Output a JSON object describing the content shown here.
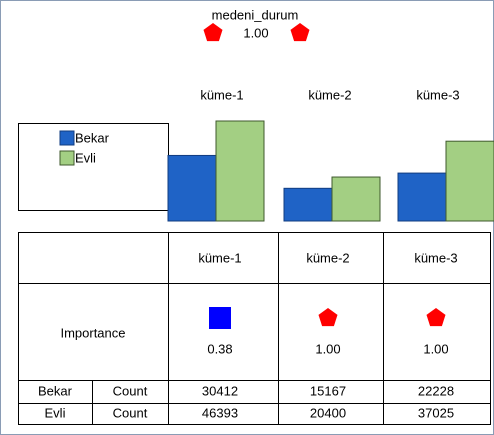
{
  "header": {
    "variable": "medeni_durum",
    "importance": "1.00",
    "shape": "pentagon"
  },
  "clusters": [
    "küme-1",
    "küme-2",
    "küme-3"
  ],
  "colors": [
    "#1f63c6",
    "#a3cf83"
  ],
  "table": {
    "importance_label": "Importance",
    "importance": [
      "0.38",
      "1.00",
      "1.00"
    ],
    "importance_shape": [
      "square",
      "pentagon",
      "pentagon"
    ],
    "count_label": "Count",
    "rows": [
      {
        "name": "Bekar",
        "counts": [
          30412,
          15167,
          22228
        ]
      },
      {
        "name": "Evli",
        "counts": [
          46393,
          20400,
          37025
        ]
      }
    ]
  }
}
